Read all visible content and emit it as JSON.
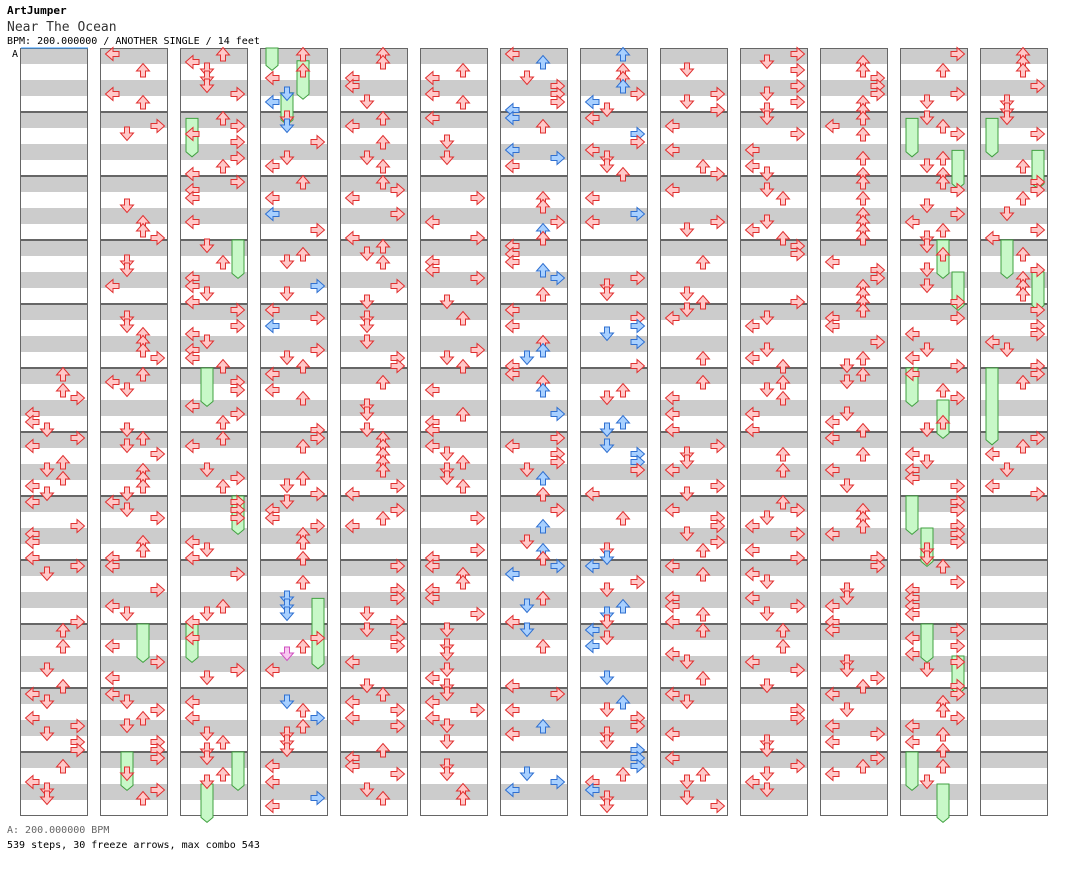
{
  "header": {
    "artist": "ArtJumper",
    "title": "Near The Ocean",
    "info": "BPM: 200.000000 / ANOTHER SINGLE / 14 feet"
  },
  "section_label": "A",
  "footer": {
    "bpm": "A: 200.000000 BPM",
    "stats": "539 steps, 30 freeze arrows, max combo 543"
  },
  "colors": {
    "normal_fill": "#ffc8c8",
    "normal_stroke": "#e03030",
    "special_fill": "#a8d0ff",
    "special_stroke": "#3070d0",
    "mine_fill": "#f8c8f0",
    "mine_stroke": "#d050c0",
    "freeze_fill": "#c8f8c8",
    "freeze_stroke": "#40a040",
    "stripe": "#cccccc",
    "border": "#666666"
  },
  "chart_data": {
    "type": "step-chart",
    "columns": 13,
    "measures_per_column": 12,
    "lanes": [
      "left",
      "down",
      "up",
      "right"
    ],
    "note_density_rows_per_measure": 4,
    "seed": 20240613,
    "special_columns": [
      3,
      6
    ],
    "blue_columns": [
      3,
      6,
      7
    ],
    "freezes": [
      {
        "col": 3,
        "lane": 0,
        "start": 0.0,
        "len": 0.35
      },
      {
        "col": 3,
        "lane": 2,
        "start": 0.2,
        "len": 0.6
      },
      {
        "col": 3,
        "lane": 1,
        "start": 0.7,
        "len": 0.5
      },
      {
        "col": 2,
        "lane": 0,
        "start": 1.1,
        "len": 0.6
      },
      {
        "col": 2,
        "lane": 3,
        "start": 3.0,
        "len": 0.6
      },
      {
        "col": 2,
        "lane": 1,
        "start": 5.0,
        "len": 0.6
      },
      {
        "col": 2,
        "lane": 3,
        "start": 7.0,
        "len": 0.6
      },
      {
        "col": 2,
        "lane": 0,
        "start": 9.0,
        "len": 0.6
      },
      {
        "col": 2,
        "lane": 3,
        "start": 11.0,
        "len": 0.6
      },
      {
        "col": 2,
        "lane": 1,
        "start": 11.5,
        "len": 0.6
      },
      {
        "col": 1,
        "lane": 2,
        "start": 9.0,
        "len": 0.6
      },
      {
        "col": 1,
        "lane": 1,
        "start": 11.0,
        "len": 0.6
      },
      {
        "col": 3,
        "lane": 3,
        "start": 8.6,
        "len": 1.1
      },
      {
        "col": 11,
        "lane": 0,
        "start": 1.1,
        "len": 0.6
      },
      {
        "col": 11,
        "lane": 3,
        "start": 1.6,
        "len": 0.6
      },
      {
        "col": 11,
        "lane": 2,
        "start": 3.0,
        "len": 0.6
      },
      {
        "col": 11,
        "lane": 3,
        "start": 3.5,
        "len": 0.6
      },
      {
        "col": 11,
        "lane": 0,
        "start": 5.0,
        "len": 0.6
      },
      {
        "col": 11,
        "lane": 2,
        "start": 5.5,
        "len": 0.6
      },
      {
        "col": 11,
        "lane": 0,
        "start": 7.0,
        "len": 0.6
      },
      {
        "col": 11,
        "lane": 1,
        "start": 7.5,
        "len": 0.6
      },
      {
        "col": 11,
        "lane": 1,
        "start": 9.0,
        "len": 0.6
      },
      {
        "col": 11,
        "lane": 3,
        "start": 9.5,
        "len": 0.6
      },
      {
        "col": 11,
        "lane": 0,
        "start": 11.0,
        "len": 0.6
      },
      {
        "col": 11,
        "lane": 2,
        "start": 11.5,
        "len": 0.6
      },
      {
        "col": 12,
        "lane": 0,
        "start": 1.1,
        "len": 0.6
      },
      {
        "col": 12,
        "lane": 3,
        "start": 1.6,
        "len": 0.6
      },
      {
        "col": 12,
        "lane": 1,
        "start": 3.0,
        "len": 0.6
      },
      {
        "col": 12,
        "lane": 3,
        "start": 3.5,
        "len": 0.6
      },
      {
        "col": 12,
        "lane": 0,
        "start": 5.0,
        "len": 1.2
      }
    ]
  }
}
